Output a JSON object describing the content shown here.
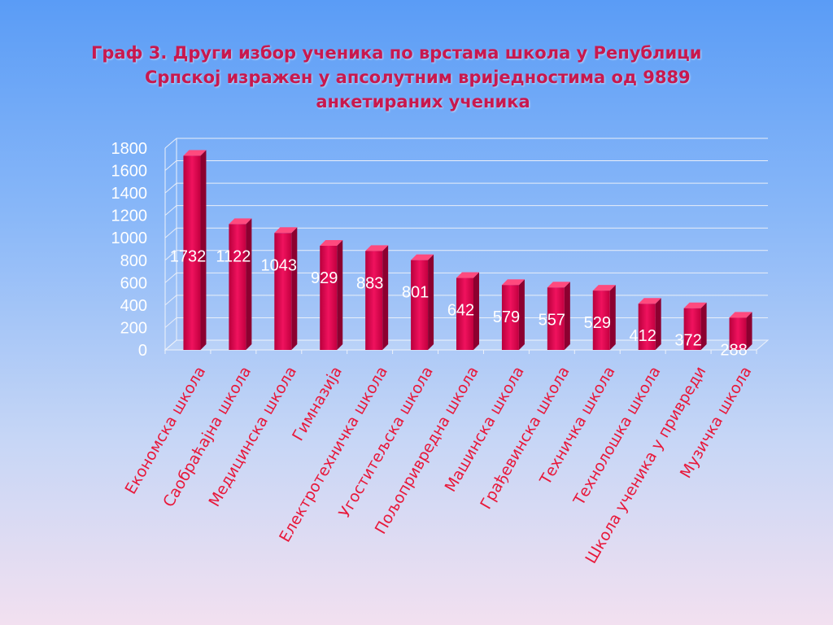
{
  "title": {
    "line1": "Граф 3. Други избор ученика по врстама школа у Републици",
    "line2": "Српској изражен у апсолутним вриједностима од 9889",
    "line3": "анкетираних ученика"
  },
  "chart_data": {
    "type": "bar",
    "categories": [
      "Економска школа",
      "Саобраћајна школа",
      "Медицинска школа",
      "Гимназија",
      "Електротехничка школа",
      "Угоститељска школа",
      "Пољопривредна школа",
      "Машинска школа",
      "Грађевинска школа",
      "Техничка школа",
      "Технолошка школа",
      "Школа ученика у привреди",
      "Музичка школа"
    ],
    "values": [
      1732,
      1122,
      1043,
      929,
      883,
      801,
      642,
      579,
      557,
      529,
      412,
      372,
      288
    ],
    "ylim": [
      0,
      1800
    ],
    "yticks": [
      0,
      200,
      400,
      600,
      800,
      1000,
      1200,
      1400,
      1600,
      1800
    ],
    "grid": true,
    "bar_color": "#d8004a",
    "label_color": "#ffffff",
    "category_color": "#e8183a"
  }
}
